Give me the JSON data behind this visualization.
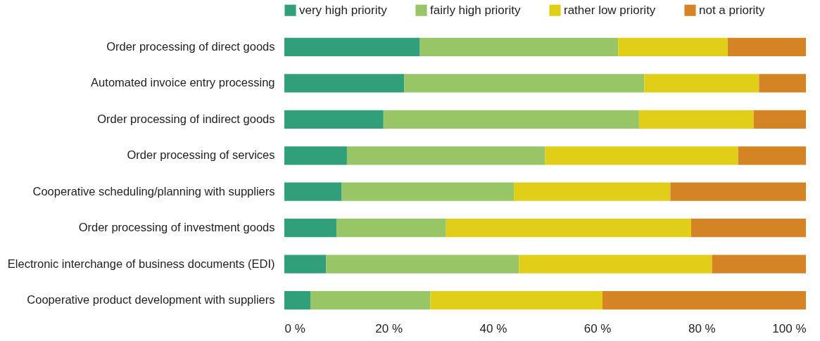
{
  "chart_data": {
    "type": "bar",
    "orientation": "horizontal",
    "stacked": true,
    "legend": "top",
    "categories": [
      "Order processing of direct goods",
      "Automated invoice entry processing",
      "Order processing of indirect goods",
      "Order processing of services",
      "Cooperative scheduling/planning with suppliers",
      "Order processing of investment goods",
      "Electronic interchange of business documents (EDI)",
      "Cooperative product development with suppliers"
    ],
    "series": [
      {
        "name": "very high priority",
        "color": "#31a07a",
        "values": [
          26,
          23,
          19,
          12,
          11,
          10,
          8,
          5
        ]
      },
      {
        "name": "fairly high priority",
        "color": "#98c566",
        "values": [
          38,
          46,
          49,
          38,
          33,
          21,
          37,
          23
        ]
      },
      {
        "name": "rather low priority",
        "color": "#e0ce19",
        "values": [
          21,
          22,
          22,
          37,
          30,
          47,
          37,
          33
        ]
      },
      {
        "name": "not a priority",
        "color": "#d58425",
        "values": [
          15,
          9,
          10,
          13,
          26,
          22,
          18,
          39
        ]
      }
    ],
    "xlim": [
      0,
      100
    ],
    "xticks": [
      {
        "value": 0,
        "label": "0 %"
      },
      {
        "value": 20,
        "label": "20 %"
      },
      {
        "value": 40,
        "label": "40 %"
      },
      {
        "value": 60,
        "label": "60 %"
      },
      {
        "value": 80,
        "label": "80 %"
      },
      {
        "value": 100,
        "label": "100 %"
      }
    ]
  }
}
